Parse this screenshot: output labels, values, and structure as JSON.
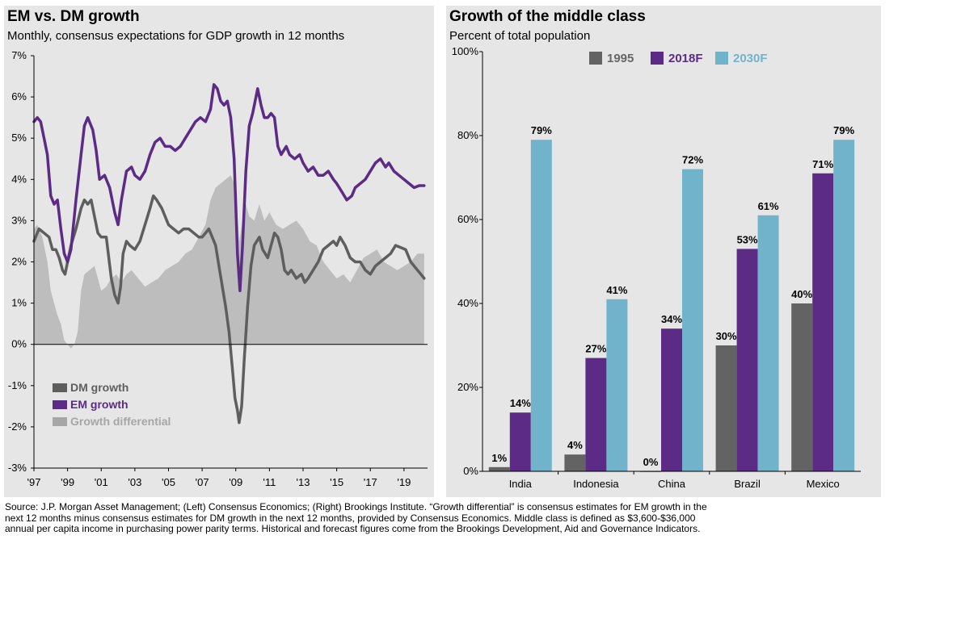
{
  "left_chart": {
    "title": "EM vs. DM growth",
    "subtitle": "Monthly, consensus expectations for GDP growth in 12 months",
    "legend": [
      "DM growth",
      "EM growth",
      "Growth differential"
    ]
  },
  "right_chart": {
    "title": "Growth of the middle class",
    "subtitle": "Percent of total population",
    "legend": [
      "1995",
      "2018F",
      "2030F"
    ]
  },
  "source_note": "Source: J.P. Morgan Asset Management; (Left) Consensus Economics; (Right) Brookings Institute. “Growth differential” is consensus estimates for EM growth in the next 12 months minus consensus estimates for DM growth in the next 12 months, provided by Consensus Economics. Middle class is defined as $3,600-$36,000 annual per capita income in purchasing power parity terms. Historical and forecast figures come from the Brookings Development, Aid and Governance Indicators.",
  "colors": {
    "dm": "#5e5e5e",
    "em": "#5b2b86",
    "diff": "#bdbdbd",
    "c1995": "#636363",
    "c2018": "#5b2b86",
    "c2030": "#72b3cc",
    "legend_1995_text": "#666666",
    "legend_2018_text": "#5b2b86",
    "legend_2030_text": "#72b3cc"
  },
  "chart_data": [
    {
      "type": "line",
      "title": "EM vs. DM growth",
      "subtitle": "Monthly, consensus expectations for GDP growth in 12 months",
      "x_tick_labels": [
        "'97",
        "'99",
        "'01",
        "'03",
        "'05",
        "'07",
        "'09",
        "'11",
        "'13",
        "'15",
        "'17",
        "'19"
      ],
      "x_tick_values": [
        1997,
        1999,
        2001,
        2003,
        2005,
        2007,
        2009,
        2011,
        2013,
        2015,
        2017,
        2019
      ],
      "xlim": [
        1997,
        2020.4
      ],
      "y_tick_labels": [
        "-3%",
        "-2%",
        "-1%",
        "0%",
        "1%",
        "2%",
        "3%",
        "4%",
        "5%",
        "6%",
        "7%"
      ],
      "ylim": [
        -3,
        7
      ],
      "legend_position": "lower-left",
      "series": [
        {
          "name": "DM growth",
          "kind": "line",
          "x": [
            1997.0,
            1997.3,
            1997.6,
            1997.9,
            1998.1,
            1998.3,
            1998.5,
            1998.7,
            1998.85,
            1999.0,
            1999.2,
            1999.5,
            1999.8,
            2000.0,
            2000.2,
            2000.4,
            2000.55,
            2000.8,
            2001.0,
            2001.3,
            2001.6,
            2001.8,
            2002.0,
            2002.15,
            2002.3,
            2002.5,
            2002.7,
            2003.0,
            2003.3,
            2003.6,
            2003.9,
            2004.1,
            2004.3,
            2004.6,
            2005.0,
            2005.3,
            2005.6,
            2005.9,
            2006.2,
            2006.5,
            2006.8,
            2007.0,
            2007.2,
            2007.4,
            2007.6,
            2007.8,
            2008.0,
            2008.2,
            2008.4,
            2008.6,
            2008.8,
            2008.95,
            2009.1,
            2009.2,
            2009.35,
            2009.5,
            2009.7,
            2009.9,
            2010.1,
            2010.4,
            2010.6,
            2010.9,
            2011.1,
            2011.3,
            2011.5,
            2011.7,
            2011.9,
            2012.1,
            2012.3,
            2012.6,
            2012.9,
            2013.1,
            2013.3,
            2013.6,
            2013.9,
            2014.2,
            2014.5,
            2014.8,
            2015.0,
            2015.2,
            2015.5,
            2015.8,
            2016.1,
            2016.4,
            2016.7,
            2017.0,
            2017.3,
            2017.6,
            2017.9,
            2018.2,
            2018.5,
            2018.8,
            2019.1,
            2019.4,
            2019.6,
            2019.8,
            2020.0,
            2020.2
          ],
          "y": [
            2.5,
            2.8,
            2.7,
            2.6,
            2.3,
            2.3,
            2.1,
            1.8,
            1.7,
            2.0,
            2.4,
            2.8,
            3.3,
            3.5,
            3.4,
            3.5,
            3.2,
            2.7,
            2.6,
            2.6,
            1.6,
            1.2,
            1.0,
            1.4,
            2.2,
            2.5,
            2.4,
            2.3,
            2.5,
            2.9,
            3.3,
            3.6,
            3.5,
            3.3,
            2.9,
            2.8,
            2.7,
            2.8,
            2.8,
            2.7,
            2.6,
            2.6,
            2.7,
            2.8,
            2.6,
            2.4,
            1.9,
            1.4,
            0.9,
            0.3,
            -0.6,
            -1.3,
            -1.6,
            -1.9,
            -1.5,
            -0.4,
            0.9,
            1.9,
            2.4,
            2.6,
            2.3,
            2.1,
            2.4,
            2.7,
            2.6,
            2.3,
            1.8,
            1.7,
            1.8,
            1.6,
            1.7,
            1.5,
            1.6,
            1.8,
            2.0,
            2.3,
            2.4,
            2.5,
            2.4,
            2.6,
            2.4,
            2.1,
            2.0,
            2.0,
            1.8,
            1.7,
            1.9,
            2.0,
            2.1,
            2.2,
            2.4,
            2.35,
            2.3,
            2.0,
            1.9,
            1.8,
            1.7,
            1.6
          ]
        },
        {
          "name": "EM growth",
          "kind": "line",
          "x": [
            1997.0,
            1997.2,
            1997.4,
            1997.6,
            1997.8,
            1998.0,
            1998.2,
            1998.4,
            1998.6,
            1998.8,
            1999.0,
            1999.2,
            1999.5,
            1999.8,
            2000.0,
            2000.2,
            2000.5,
            2000.7,
            2000.9,
            2001.2,
            2001.5,
            2001.8,
            2002.0,
            2002.2,
            2002.5,
            2002.8,
            2003.0,
            2003.3,
            2003.6,
            2003.9,
            2004.2,
            2004.5,
            2004.8,
            2005.1,
            2005.4,
            2005.7,
            2006.0,
            2006.3,
            2006.6,
            2006.9,
            2007.2,
            2007.5,
            2007.7,
            2007.9,
            2008.1,
            2008.3,
            2008.5,
            2008.7,
            2008.9,
            2009.0,
            2009.1,
            2009.25,
            2009.4,
            2009.6,
            2009.8,
            2010.0,
            2010.3,
            2010.5,
            2010.7,
            2010.9,
            2011.1,
            2011.3,
            2011.5,
            2011.7,
            2012.0,
            2012.2,
            2012.5,
            2012.8,
            2013.0,
            2013.3,
            2013.6,
            2013.9,
            2014.2,
            2014.5,
            2014.8,
            2015.0,
            2015.3,
            2015.6,
            2015.9,
            2016.1,
            2016.4,
            2016.7,
            2017.0,
            2017.3,
            2017.6,
            2017.9,
            2018.1,
            2018.4,
            2018.7,
            2019.0,
            2019.3,
            2019.6,
            2019.9,
            2020.2
          ],
          "y": [
            5.4,
            5.5,
            5.4,
            5.0,
            4.6,
            3.6,
            3.4,
            3.5,
            2.8,
            2.2,
            2.0,
            2.3,
            3.5,
            4.6,
            5.3,
            5.5,
            5.2,
            4.7,
            4.0,
            4.1,
            3.8,
            3.2,
            2.9,
            3.5,
            4.2,
            4.3,
            4.1,
            4.0,
            4.2,
            4.6,
            4.9,
            5.0,
            4.8,
            4.8,
            4.7,
            4.8,
            5.0,
            5.2,
            5.4,
            5.5,
            5.4,
            5.7,
            6.3,
            6.2,
            5.9,
            5.8,
            5.9,
            5.5,
            4.5,
            3.4,
            2.2,
            1.3,
            2.4,
            4.2,
            5.3,
            5.6,
            6.2,
            5.8,
            5.5,
            5.5,
            5.6,
            5.5,
            4.8,
            4.6,
            4.8,
            4.6,
            4.5,
            4.6,
            4.4,
            4.2,
            4.3,
            4.1,
            4.1,
            4.2,
            4.0,
            3.9,
            3.7,
            3.5,
            3.6,
            3.8,
            3.9,
            4.0,
            4.2,
            4.4,
            4.5,
            4.3,
            4.4,
            4.2,
            4.1,
            4.0,
            3.9,
            3.8,
            3.85,
            3.85
          ]
        },
        {
          "name": "Growth differential",
          "kind": "area",
          "x": [
            1997.0,
            1997.2,
            1997.5,
            1997.8,
            1998.0,
            1998.2,
            1998.4,
            1998.6,
            1998.8,
            1999.0,
            1999.2,
            1999.4,
            1999.6,
            1999.8,
            2000.0,
            2000.3,
            2000.6,
            2001.0,
            2001.3,
            2001.6,
            2001.9,
            2002.2,
            2002.5,
            2002.8,
            2003.2,
            2003.6,
            2004.0,
            2004.4,
            2004.8,
            2005.2,
            2005.6,
            2006.0,
            2006.4,
            2006.8,
            2007.2,
            2007.5,
            2007.8,
            2008.1,
            2008.4,
            2008.7,
            2009.0,
            2009.2,
            2009.4,
            2009.6,
            2009.8,
            2010.1,
            2010.4,
            2010.7,
            2011.0,
            2011.4,
            2011.8,
            2012.2,
            2012.6,
            2013.0,
            2013.4,
            2013.8,
            2014.2,
            2014.6,
            2015.0,
            2015.4,
            2015.8,
            2016.2,
            2016.6,
            2017.0,
            2017.4,
            2017.8,
            2018.2,
            2018.6,
            2019.0,
            2019.4,
            2019.8,
            2020.2
          ],
          "y": [
            2.8,
            2.9,
            2.6,
            2.0,
            1.3,
            1.0,
            0.7,
            0.5,
            0.1,
            0.0,
            -0.1,
            0.0,
            0.3,
            1.3,
            1.7,
            1.8,
            1.9,
            1.3,
            1.4,
            1.6,
            1.7,
            1.5,
            1.7,
            1.8,
            1.6,
            1.4,
            1.5,
            1.6,
            1.8,
            1.9,
            2.0,
            2.2,
            2.3,
            2.6,
            2.9,
            3.5,
            3.8,
            3.9,
            4.0,
            4.1,
            3.8,
            2.5,
            3.0,
            3.4,
            3.1,
            3.0,
            3.4,
            3.0,
            3.2,
            2.9,
            2.8,
            2.9,
            3.0,
            2.8,
            2.5,
            2.4,
            2.0,
            1.8,
            1.6,
            1.7,
            1.5,
            1.8,
            2.1,
            2.2,
            2.3,
            2.0,
            1.9,
            1.8,
            1.9,
            2.0,
            2.2,
            2.2
          ]
        }
      ]
    },
    {
      "type": "bar",
      "title": "Growth of the middle class",
      "subtitle": "Percent of total population",
      "categories": [
        "India",
        "Indonesia",
        "China",
        "Brazil",
        "Mexico"
      ],
      "y_tick_labels": [
        "0%",
        "20%",
        "40%",
        "60%",
        "80%",
        "100%"
      ],
      "ylim": [
        0,
        100
      ],
      "legend_position": "top-center",
      "series": [
        {
          "name": "1995",
          "values": [
            1,
            4,
            0,
            30,
            40
          ],
          "labels": [
            "1%",
            "4%",
            "0%",
            "30%",
            "40%"
          ]
        },
        {
          "name": "2018F",
          "values": [
            14,
            27,
            34,
            53,
            71
          ],
          "labels": [
            "14%",
            "27%",
            "34%",
            "53%",
            "71%"
          ]
        },
        {
          "name": "2030F",
          "values": [
            79,
            41,
            72,
            61,
            79
          ],
          "labels": [
            "79%",
            "41%",
            "72%",
            "61%",
            "79%"
          ]
        }
      ]
    }
  ]
}
